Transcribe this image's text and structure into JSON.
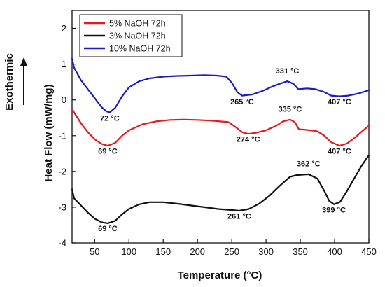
{
  "chart_data": {
    "type": "line",
    "xlabel": "Temperature (°C)",
    "ylabel": "Heat Flow (mW/mg)",
    "side_label": "Exothermic",
    "xlim": [
      17,
      450
    ],
    "ylim": [
      -4,
      2.5
    ],
    "xticks": [
      50,
      100,
      150,
      200,
      250,
      300,
      350,
      400,
      450
    ],
    "yticks": [
      -4,
      -3,
      -2,
      -1,
      0,
      1,
      2
    ],
    "legend_position": "top-left",
    "grid": false,
    "series": [
      {
        "name": "5% NaOH 72h",
        "color": "#e41a1a",
        "points": [
          [
            17,
            -0.25
          ],
          [
            20,
            -0.35
          ],
          [
            30,
            -0.65
          ],
          [
            40,
            -0.9
          ],
          [
            50,
            -1.1
          ],
          [
            60,
            -1.23
          ],
          [
            69,
            -1.28
          ],
          [
            80,
            -1.2
          ],
          [
            90,
            -1.0
          ],
          [
            100,
            -0.85
          ],
          [
            120,
            -0.68
          ],
          [
            140,
            -0.6
          ],
          [
            160,
            -0.56
          ],
          [
            180,
            -0.55
          ],
          [
            200,
            -0.56
          ],
          [
            220,
            -0.58
          ],
          [
            245,
            -0.62
          ],
          [
            255,
            -0.75
          ],
          [
            265,
            -0.9
          ],
          [
            274,
            -0.95
          ],
          [
            285,
            -0.92
          ],
          [
            300,
            -0.85
          ],
          [
            315,
            -0.72
          ],
          [
            325,
            -0.6
          ],
          [
            335,
            -0.55
          ],
          [
            342,
            -0.62
          ],
          [
            348,
            -0.82
          ],
          [
            355,
            -0.83
          ],
          [
            365,
            -0.85
          ],
          [
            375,
            -0.88
          ],
          [
            385,
            -1.0
          ],
          [
            395,
            -1.18
          ],
          [
            407,
            -1.28
          ],
          [
            418,
            -1.22
          ],
          [
            430,
            -1.05
          ],
          [
            440,
            -0.88
          ],
          [
            450,
            -0.72
          ]
        ]
      },
      {
        "name": "3% NaOH 72h",
        "color": "#111111",
        "points": [
          [
            17,
            -2.5
          ],
          [
            20,
            -2.75
          ],
          [
            30,
            -2.95
          ],
          [
            40,
            -3.15
          ],
          [
            50,
            -3.32
          ],
          [
            60,
            -3.42
          ],
          [
            69,
            -3.45
          ],
          [
            80,
            -3.38
          ],
          [
            90,
            -3.2
          ],
          [
            100,
            -3.05
          ],
          [
            115,
            -2.92
          ],
          [
            130,
            -2.86
          ],
          [
            150,
            -2.86
          ],
          [
            170,
            -2.9
          ],
          [
            190,
            -2.95
          ],
          [
            210,
            -3.0
          ],
          [
            230,
            -3.05
          ],
          [
            250,
            -3.08
          ],
          [
            261,
            -3.1
          ],
          [
            275,
            -3.05
          ],
          [
            290,
            -2.9
          ],
          [
            305,
            -2.68
          ],
          [
            320,
            -2.4
          ],
          [
            335,
            -2.15
          ],
          [
            345,
            -2.1
          ],
          [
            362,
            -2.08
          ],
          [
            375,
            -2.2
          ],
          [
            385,
            -2.55
          ],
          [
            392,
            -2.82
          ],
          [
            399,
            -2.92
          ],
          [
            408,
            -2.85
          ],
          [
            418,
            -2.55
          ],
          [
            430,
            -2.15
          ],
          [
            440,
            -1.82
          ],
          [
            450,
            -1.55
          ]
        ]
      },
      {
        "name": "10% NaOH 72h",
        "color": "#1c1cc4",
        "points": [
          [
            17,
            1.15
          ],
          [
            20,
            0.9
          ],
          [
            30,
            0.55
          ],
          [
            40,
            0.3
          ],
          [
            50,
            0.05
          ],
          [
            60,
            -0.2
          ],
          [
            67,
            -0.32
          ],
          [
            72,
            -0.35
          ],
          [
            80,
            -0.22
          ],
          [
            90,
            0.1
          ],
          [
            100,
            0.35
          ],
          [
            115,
            0.52
          ],
          [
            130,
            0.6
          ],
          [
            150,
            0.65
          ],
          [
            170,
            0.67
          ],
          [
            190,
            0.68
          ],
          [
            210,
            0.69
          ],
          [
            228,
            0.68
          ],
          [
            242,
            0.65
          ],
          [
            250,
            0.48
          ],
          [
            258,
            0.22
          ],
          [
            265,
            0.12
          ],
          [
            280,
            0.15
          ],
          [
            295,
            0.25
          ],
          [
            310,
            0.38
          ],
          [
            320,
            0.45
          ],
          [
            331,
            0.52
          ],
          [
            340,
            0.45
          ],
          [
            347,
            0.3
          ],
          [
            360,
            0.32
          ],
          [
            372,
            0.3
          ],
          [
            385,
            0.22
          ],
          [
            395,
            0.12
          ],
          [
            407,
            0.1
          ],
          [
            420,
            0.12
          ],
          [
            435,
            0.18
          ],
          [
            450,
            0.27
          ]
        ]
      }
    ],
    "annotations": [
      {
        "text": "72 °C",
        "x": 72,
        "y": -0.58
      },
      {
        "text": "69 °C",
        "x": 69,
        "y": -1.5
      },
      {
        "text": "69 °C",
        "x": 69,
        "y": -3.67
      },
      {
        "text": "265 °C",
        "x": 265,
        "y": -0.12
      },
      {
        "text": "274 °C",
        "x": 274,
        "y": -1.17
      },
      {
        "text": "261 °C",
        "x": 261,
        "y": -3.32
      },
      {
        "text": "331 °C",
        "x": 331,
        "y": 0.74
      },
      {
        "text": "335 °C",
        "x": 335,
        "y": -0.33
      },
      {
        "text": "362 °C",
        "x": 362,
        "y": -1.86
      },
      {
        "text": "407 °C",
        "x": 407,
        "y": -0.12
      },
      {
        "text": "407 °C",
        "x": 407,
        "y": -1.5
      },
      {
        "text": "399 °C",
        "x": 399,
        "y": -3.15
      }
    ]
  }
}
